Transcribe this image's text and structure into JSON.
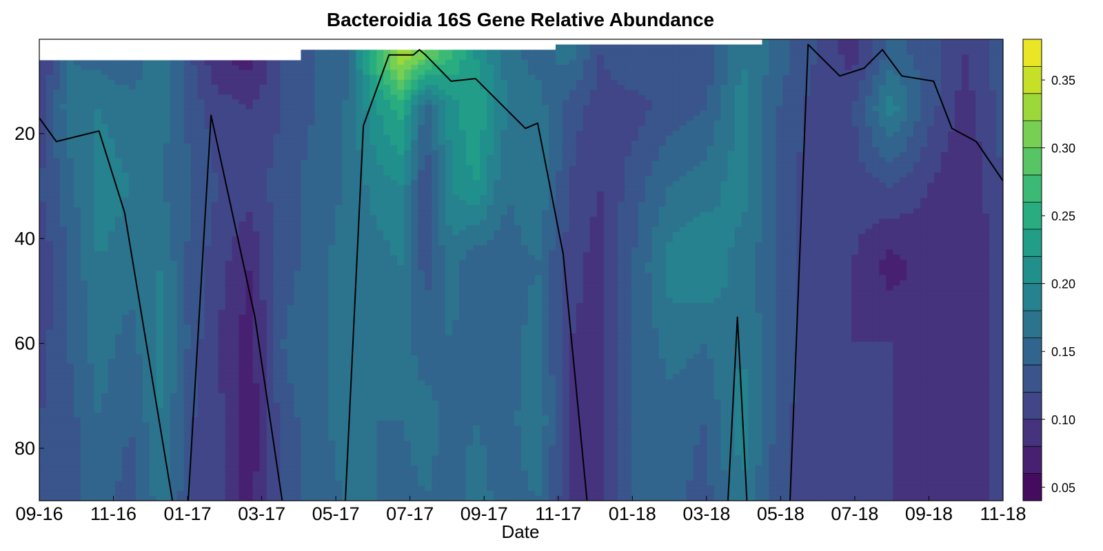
{
  "chart_data": {
    "type": "heatmap",
    "title": "Bacteroidia 16S Gene Relative Abundance",
    "xlabel": "Date",
    "ylabel": "",
    "x_ticks": [
      "09-16",
      "11-16",
      "01-17",
      "03-17",
      "05-17",
      "07-17",
      "09-17",
      "11-17",
      "01-18",
      "03-18",
      "05-18",
      "07-18",
      "09-18",
      "11-18"
    ],
    "y_ticks": [
      20,
      40,
      60,
      80
    ],
    "xlim": [
      "2016-09-01",
      "2018-11-01"
    ],
    "ylim": [
      90,
      2
    ],
    "y_axis_inverted": true,
    "colorbar": {
      "ticks": [
        "0.05",
        "0.10",
        "0.15",
        "0.20",
        "0.25",
        "0.30",
        "0.35"
      ],
      "range": [
        0.04,
        0.38
      ],
      "levels": 17,
      "colormap": [
        "#440154",
        "#482475",
        "#414487",
        "#355f8d",
        "#2a788e",
        "#21908d",
        "#22a884",
        "#44bf70",
        "#7ad151",
        "#bddf26",
        "#fde725"
      ]
    },
    "columns": [
      {
        "date": "2016-09-01",
        "top_depth": 6,
        "profile": [
          0.09,
          0.1,
          0.12,
          0.1,
          0.11,
          0.12,
          0.12
        ]
      },
      {
        "date": "2016-09-24",
        "top_depth": 6,
        "profile": [
          0.16,
          0.17,
          0.15,
          0.14,
          0.14,
          0.13,
          0.13
        ]
      },
      {
        "date": "2016-10-20",
        "top_depth": 6,
        "profile": [
          0.15,
          0.18,
          0.19,
          0.18,
          0.17,
          0.16,
          0.15
        ]
      },
      {
        "date": "2016-11-15",
        "top_depth": 6,
        "profile": [
          0.14,
          0.17,
          0.18,
          0.17,
          0.15,
          0.14,
          0.13
        ]
      },
      {
        "date": "2016-12-10",
        "top_depth": 6,
        "profile": [
          0.18,
          0.17,
          0.16,
          0.18,
          0.19,
          0.18,
          0.17
        ]
      },
      {
        "date": "2017-01-05",
        "top_depth": 6,
        "profile": [
          0.12,
          0.13,
          0.14,
          0.13,
          0.13,
          0.12,
          0.12
        ]
      },
      {
        "date": "2017-01-25",
        "top_depth": 6,
        "profile": [
          0.08,
          0.11,
          0.12,
          0.11,
          0.1,
          0.11,
          0.11
        ]
      },
      {
        "date": "2017-02-20",
        "top_depth": 6,
        "profile": [
          0.07,
          0.1,
          0.11,
          0.08,
          0.07,
          0.06,
          0.07
        ]
      },
      {
        "date": "2017-03-20",
        "top_depth": 6,
        "profile": [
          0.12,
          0.12,
          0.13,
          0.13,
          0.14,
          0.13,
          0.13
        ]
      },
      {
        "date": "2017-04-15",
        "top_depth": 4,
        "profile": [
          0.14,
          0.14,
          0.15,
          0.15,
          0.16,
          0.15,
          0.15
        ]
      },
      {
        "date": "2017-05-10",
        "top_depth": 4,
        "profile": [
          0.15,
          0.16,
          0.16,
          0.17,
          0.16,
          0.17,
          0.16
        ]
      },
      {
        "date": "2017-06-05",
        "top_depth": 4,
        "profile": [
          0.27,
          0.22,
          0.19,
          0.17,
          0.17,
          0.16,
          0.16
        ]
      },
      {
        "date": "2017-06-25",
        "top_depth": 4,
        "profile": [
          0.34,
          0.25,
          0.2,
          0.18,
          0.17,
          0.16,
          0.15
        ]
      },
      {
        "date": "2017-07-15",
        "top_depth": 4,
        "profile": [
          0.3,
          0.15,
          0.12,
          0.13,
          0.15,
          0.17,
          0.16
        ]
      },
      {
        "date": "2017-08-05",
        "top_depth": 4,
        "profile": [
          0.26,
          0.21,
          0.2,
          0.17,
          0.16,
          0.15,
          0.15
        ]
      },
      {
        "date": "2017-08-25",
        "top_depth": 4,
        "profile": [
          0.22,
          0.24,
          0.22,
          0.14,
          0.15,
          0.16,
          0.17
        ]
      },
      {
        "date": "2017-09-20",
        "top_depth": 4,
        "profile": [
          0.17,
          0.18,
          0.16,
          0.15,
          0.15,
          0.15,
          0.15
        ]
      },
      {
        "date": "2017-10-15",
        "top_depth": 4,
        "profile": [
          0.15,
          0.17,
          0.18,
          0.16,
          0.17,
          0.18,
          0.16
        ]
      },
      {
        "date": "2017-11-10",
        "top_depth": 3,
        "profile": [
          0.17,
          0.13,
          0.12,
          0.11,
          0.1,
          0.1,
          0.1
        ]
      },
      {
        "date": "2017-12-05",
        "top_depth": 3,
        "profile": [
          0.12,
          0.11,
          0.1,
          0.09,
          0.09,
          0.09,
          0.09
        ]
      },
      {
        "date": "2018-01-01",
        "top_depth": 3,
        "profile": [
          0.14,
          0.11,
          0.13,
          0.14,
          0.14,
          0.14,
          0.14
        ]
      },
      {
        "date": "2018-02-01",
        "top_depth": 3,
        "profile": [
          0.13,
          0.13,
          0.16,
          0.19,
          0.17,
          0.15,
          0.15
        ]
      },
      {
        "date": "2018-03-01",
        "top_depth": 3,
        "profile": [
          0.12,
          0.14,
          0.17,
          0.2,
          0.16,
          0.14,
          0.13
        ]
      },
      {
        "date": "2018-04-01",
        "top_depth": 3,
        "profile": [
          0.18,
          0.19,
          0.19,
          0.17,
          0.18,
          0.19,
          0.18
        ]
      },
      {
        "date": "2018-05-01",
        "top_depth": 2,
        "profile": [
          0.15,
          0.14,
          0.14,
          0.14,
          0.14,
          0.13,
          0.13
        ]
      },
      {
        "date": "2018-06-01",
        "top_depth": 2,
        "profile": [
          0.12,
          0.11,
          0.1,
          0.1,
          0.1,
          0.1,
          0.1
        ]
      },
      {
        "date": "2018-07-01",
        "top_depth": 2,
        "profile": [
          0.09,
          0.12,
          0.11,
          0.1,
          0.1,
          0.1,
          0.1
        ]
      },
      {
        "date": "2018-08-01",
        "top_depth": 2,
        "profile": [
          0.15,
          0.19,
          0.12,
          0.07,
          0.1,
          0.1,
          0.1
        ]
      },
      {
        "date": "2018-09-01",
        "top_depth": 2,
        "profile": [
          0.13,
          0.13,
          0.1,
          0.09,
          0.08,
          0.08,
          0.08
        ]
      },
      {
        "date": "2018-10-01",
        "top_depth": 2,
        "profile": [
          0.1,
          0.09,
          0.08,
          0.08,
          0.08,
          0.08,
          0.08
        ]
      },
      {
        "date": "2018-11-01",
        "top_depth": 2,
        "profile": [
          0.13,
          0.13,
          0.12,
          0.11,
          0.11,
          0.11,
          0.11
        ]
      }
    ],
    "profile_depths": [
      5,
      15,
      30,
      45,
      60,
      75,
      90
    ],
    "line": {
      "name": "",
      "color": "#000000",
      "x": [
        "2016-09-01",
        "2016-09-15",
        "2016-10-20",
        "2016-11-10",
        "2016-12-20",
        "2017-01-01",
        "2017-01-20",
        "2017-02-25",
        "2017-03-20",
        "2017-05-10",
        "2017-05-25",
        "2017-06-15",
        "2017-07-05",
        "2017-07-10",
        "2017-07-15",
        "2017-08-05",
        "2017-08-25",
        "2017-10-05",
        "2017-10-15",
        "2017-11-05",
        "2017-11-25",
        "2018-03-20",
        "2018-03-28",
        "2018-04-05",
        "2018-05-10",
        "2018-05-25",
        "2018-06-20",
        "2018-07-10",
        "2018-07-25",
        "2018-08-10",
        "2018-09-05",
        "2018-09-20",
        "2018-10-10",
        "2018-11-01"
      ],
      "y": [
        17,
        21.5,
        19.5,
        35,
        91,
        91,
        16.5,
        55,
        91,
        91,
        18.5,
        5,
        5,
        4,
        5,
        10,
        9.5,
        19,
        18,
        43,
        91,
        91,
        55,
        91,
        91,
        3,
        9,
        7.5,
        4,
        9,
        10,
        19,
        21.5,
        29
      ]
    }
  }
}
